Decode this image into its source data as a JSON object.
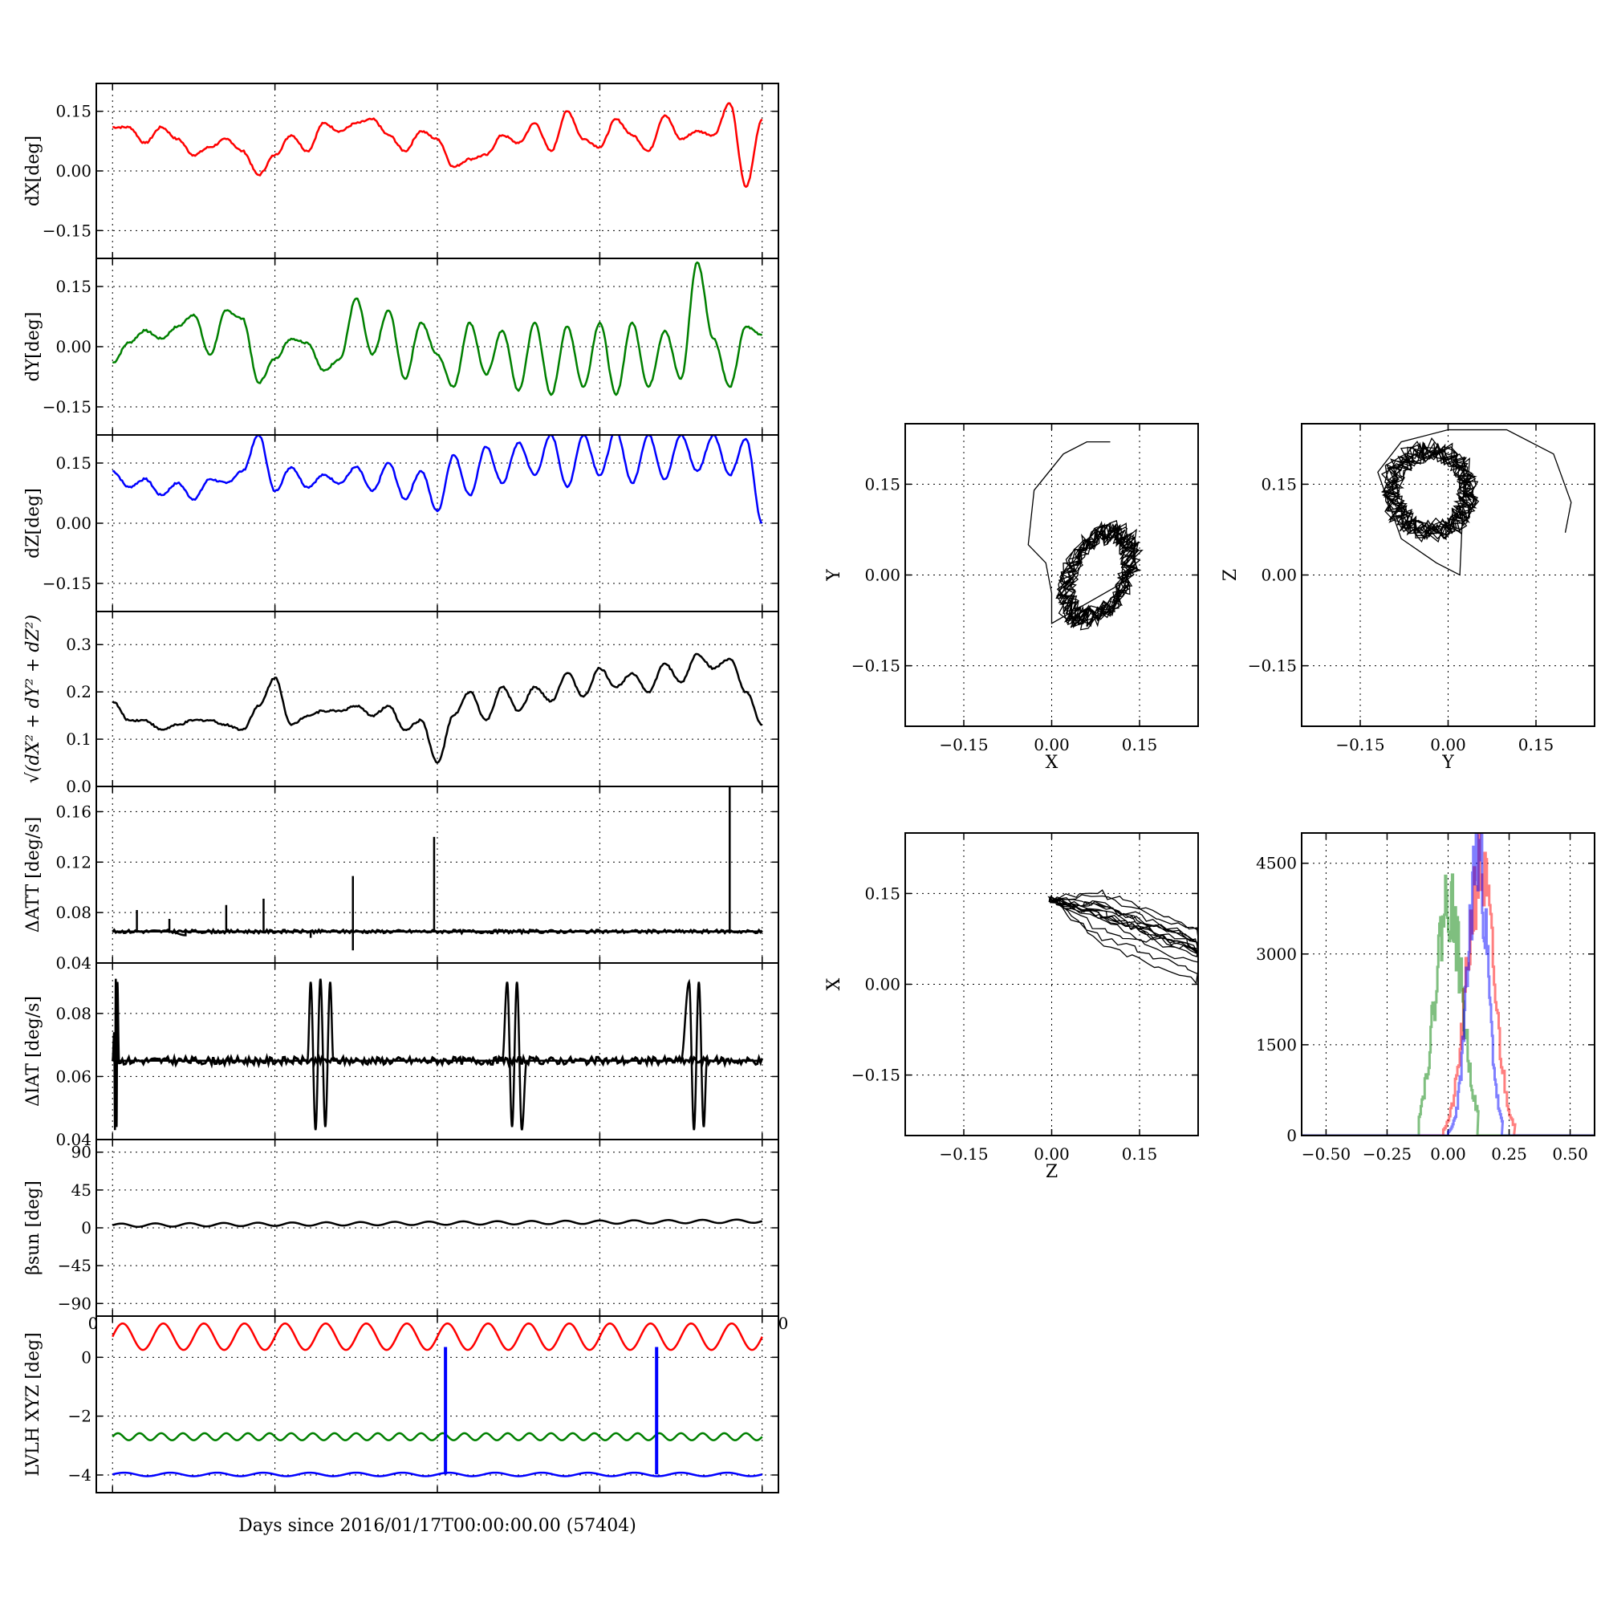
{
  "chart_data": [
    {
      "id": "dx",
      "type": "line",
      "ylabel": "dX[deg]",
      "yticks": [
        0.15,
        0.0,
        -0.15
      ],
      "ytick_labels": [
        "0.15",
        "0.00",
        "−0.15"
      ],
      "ylim": [
        -0.22,
        0.22
      ],
      "xlim": [
        -0.1,
        4.1
      ],
      "grid": true,
      "series": [
        {
          "color": "#ff0000",
          "width": 2.5,
          "x": [
            0.0,
            0.1,
            0.2,
            0.3,
            0.4,
            0.5,
            0.6,
            0.7,
            0.8,
            0.9,
            1.0,
            1.1,
            1.2,
            1.3,
            1.4,
            1.5,
            1.6,
            1.7,
            1.8,
            1.9,
            2.0,
            2.1,
            2.2,
            2.3,
            2.4,
            2.5,
            2.6,
            2.7,
            2.8,
            2.9,
            3.0,
            3.1,
            3.2,
            3.3,
            3.4,
            3.5,
            3.6,
            3.7,
            3.8,
            3.9,
            4.0
          ],
          "y": [
            0.11,
            0.11,
            0.07,
            0.11,
            0.08,
            0.04,
            0.06,
            0.08,
            0.05,
            -0.01,
            0.04,
            0.09,
            0.05,
            0.12,
            0.1,
            0.12,
            0.13,
            0.09,
            0.05,
            0.1,
            0.08,
            0.01,
            0.03,
            0.04,
            0.09,
            0.07,
            0.12,
            0.05,
            0.15,
            0.08,
            0.06,
            0.13,
            0.09,
            0.05,
            0.14,
            0.08,
            0.1,
            0.09,
            0.17,
            -0.04,
            0.13
          ]
        }
      ]
    },
    {
      "id": "dy",
      "type": "line",
      "ylabel": "dY[deg]",
      "yticks": [
        0.15,
        0.0,
        -0.15
      ],
      "ytick_labels": [
        "0.15",
        "0.00",
        "−0.15"
      ],
      "ylim": [
        -0.22,
        0.22
      ],
      "xlim": [
        -0.1,
        4.1
      ],
      "grid": true,
      "series": [
        {
          "color": "#008000",
          "width": 2.5,
          "x": [
            0.0,
            0.1,
            0.2,
            0.3,
            0.4,
            0.5,
            0.6,
            0.7,
            0.8,
            0.9,
            1.0,
            1.1,
            1.2,
            1.3,
            1.4,
            1.5,
            1.6,
            1.7,
            1.8,
            1.9,
            2.0,
            2.1,
            2.2,
            2.3,
            2.4,
            2.5,
            2.6,
            2.7,
            2.8,
            2.9,
            3.0,
            3.1,
            3.2,
            3.3,
            3.4,
            3.5,
            3.6,
            3.7,
            3.8,
            3.9,
            4.0
          ],
          "y": [
            -0.04,
            0.01,
            0.04,
            0.02,
            0.05,
            0.08,
            -0.02,
            0.09,
            0.07,
            -0.09,
            -0.03,
            0.02,
            0.01,
            -0.06,
            -0.03,
            0.12,
            -0.02,
            0.09,
            -0.08,
            0.06,
            -0.02,
            -0.1,
            0.06,
            -0.07,
            0.04,
            -0.11,
            0.06,
            -0.12,
            0.05,
            -0.1,
            0.06,
            -0.12,
            0.06,
            -0.1,
            0.04,
            -0.08,
            0.21,
            0.02,
            -0.1,
            0.05,
            0.03
          ]
        }
      ]
    },
    {
      "id": "dz",
      "type": "line",
      "ylabel": "dZ[deg]",
      "yticks": [
        0.15,
        0.0,
        -0.15
      ],
      "ytick_labels": [
        "0.15",
        "0.00",
        "−0.15"
      ],
      "ylim": [
        -0.22,
        0.22
      ],
      "xlim": [
        -0.1,
        4.1
      ],
      "grid": true,
      "series": [
        {
          "color": "#0000ff",
          "width": 2.5,
          "x": [
            0.0,
            0.1,
            0.2,
            0.3,
            0.4,
            0.5,
            0.6,
            0.7,
            0.8,
            0.9,
            1.0,
            1.1,
            1.2,
            1.3,
            1.4,
            1.5,
            1.6,
            1.7,
            1.8,
            1.9,
            2.0,
            2.1,
            2.2,
            2.3,
            2.4,
            2.5,
            2.6,
            2.7,
            2.8,
            2.9,
            3.0,
            3.1,
            3.2,
            3.3,
            3.4,
            3.5,
            3.6,
            3.7,
            3.8,
            3.9,
            4.0
          ],
          "y": [
            0.13,
            0.09,
            0.11,
            0.07,
            0.1,
            0.06,
            0.11,
            0.1,
            0.13,
            0.22,
            0.08,
            0.14,
            0.09,
            0.12,
            0.1,
            0.14,
            0.08,
            0.15,
            0.06,
            0.13,
            0.03,
            0.17,
            0.07,
            0.19,
            0.1,
            0.2,
            0.12,
            0.22,
            0.09,
            0.22,
            0.12,
            0.23,
            0.1,
            0.22,
            0.11,
            0.22,
            0.13,
            0.22,
            0.12,
            0.21,
            0.0
          ]
        }
      ]
    },
    {
      "id": "total",
      "type": "line",
      "yticks": [
        0.3,
        0.2,
        0.1,
        0.0
      ],
      "ytick_labels": [
        "0.3",
        "0.2",
        "0.1",
        "0.0"
      ],
      "ylim": [
        0.0,
        0.37
      ],
      "xlim": [
        -0.1,
        4.1
      ],
      "grid": true,
      "series": [
        {
          "color": "#000000",
          "width": 2.5,
          "x": [
            0.0,
            0.1,
            0.2,
            0.3,
            0.4,
            0.5,
            0.6,
            0.7,
            0.8,
            0.9,
            1.0,
            1.1,
            1.2,
            1.3,
            1.4,
            1.5,
            1.6,
            1.7,
            1.8,
            1.9,
            2.0,
            2.1,
            2.2,
            2.3,
            2.4,
            2.5,
            2.6,
            2.7,
            2.8,
            2.9,
            3.0,
            3.1,
            3.2,
            3.3,
            3.4,
            3.5,
            3.6,
            3.7,
            3.8,
            3.9,
            4.0
          ],
          "y": [
            0.18,
            0.14,
            0.14,
            0.12,
            0.13,
            0.14,
            0.14,
            0.13,
            0.12,
            0.17,
            0.23,
            0.13,
            0.15,
            0.16,
            0.16,
            0.17,
            0.15,
            0.17,
            0.12,
            0.14,
            0.05,
            0.15,
            0.2,
            0.14,
            0.21,
            0.16,
            0.21,
            0.18,
            0.24,
            0.19,
            0.25,
            0.21,
            0.24,
            0.2,
            0.26,
            0.22,
            0.28,
            0.25,
            0.27,
            0.2,
            0.13
          ]
        }
      ]
    },
    {
      "id": "datt",
      "type": "line",
      "ylabel": "ΔATT [deg/s]",
      "yticks": [
        0.16,
        0.12,
        0.08
      ],
      "ytick_labels": [
        "0.16",
        "0.12",
        "0.08"
      ],
      "extra_tick_label": "0.04",
      "ylim": [
        0.04,
        0.18
      ],
      "xlim": [
        -0.1,
        4.1
      ],
      "grid": true,
      "series": [
        {
          "color": "#000000",
          "width": 2.5,
          "x": [
            0.0,
            0.15,
            0.15,
            0.15,
            0.35,
            0.35,
            0.35,
            0.45,
            0.45,
            0.45,
            0.7,
            0.7,
            0.7,
            0.93,
            0.93,
            0.93,
            1.22,
            1.22,
            1.22,
            1.48,
            1.48,
            1.48,
            1.48,
            1.48,
            1.98,
            1.98,
            1.98,
            3.8,
            3.8,
            3.8,
            4.0
          ],
          "y": [
            0.065,
            0.065,
            0.082,
            0.065,
            0.065,
            0.075,
            0.065,
            0.062,
            0.065,
            0.065,
            0.065,
            0.086,
            0.065,
            0.065,
            0.091,
            0.065,
            0.065,
            0.06,
            0.065,
            0.065,
            0.109,
            0.05,
            0.065,
            0.065,
            0.065,
            0.14,
            0.065,
            0.065,
            0.18,
            0.065,
            0.065
          ]
        }
      ]
    },
    {
      "id": "diat",
      "type": "line",
      "ylabel": "ΔIAT [deg/s]",
      "yticks": [
        0.08,
        0.06,
        0.04
      ],
      "ytick_labels": [
        "0.08",
        "0.06",
        "0.04"
      ],
      "ylim": [
        0.04,
        0.096
      ],
      "xlim": [
        -0.1,
        4.1
      ],
      "grid": true,
      "series": [
        {
          "color": "#000000",
          "width": 2.5,
          "x": [
            0.0,
            0.01,
            0.015,
            0.02,
            0.025,
            0.03,
            0.04,
            0.3,
            0.6,
            0.9,
            1.2,
            1.22,
            1.25,
            1.28,
            1.31,
            1.34,
            1.36,
            1.6,
            1.9,
            2.2,
            2.3,
            2.4,
            2.43,
            2.46,
            2.49,
            2.52,
            2.55,
            2.7,
            3.0,
            3.3,
            3.5,
            3.55,
            3.58,
            3.61,
            3.64,
            3.66,
            3.8,
            4.0
          ],
          "y": [
            0.065,
            0.074,
            0.043,
            0.091,
            0.044,
            0.09,
            0.065,
            0.065,
            0.065,
            0.065,
            0.065,
            0.09,
            0.043,
            0.091,
            0.044,
            0.09,
            0.065,
            0.065,
            0.065,
            0.065,
            0.065,
            0.065,
            0.09,
            0.044,
            0.09,
            0.043,
            0.065,
            0.065,
            0.065,
            0.065,
            0.065,
            0.09,
            0.043,
            0.09,
            0.044,
            0.065,
            0.065,
            0.065
          ]
        }
      ]
    },
    {
      "id": "beta",
      "type": "line",
      "ylabel": "βsun [deg]",
      "yticks": [
        90,
        45,
        0,
        -45,
        -90
      ],
      "ytick_labels": [
        "90",
        "45",
        "0",
        "−45",
        "−90"
      ],
      "ylim": [
        -105,
        105
      ],
      "xlim": [
        -0.1,
        4.1
      ],
      "grid": true,
      "xtick_edge_labels": [
        "0",
        "0"
      ],
      "series": [
        {
          "color": "#000000",
          "width": 2.5,
          "kind": "sine",
          "x0": 0.0,
          "x1": 4.0,
          "base_start": 3,
          "base_end": 8,
          "amp": 2,
          "periods": 19
        }
      ]
    },
    {
      "id": "lvlh",
      "type": "line",
      "ylabel": "LVLH XYZ [deg]",
      "yticks": [
        0,
        -2,
        -4
      ],
      "ytick_labels": [
        "0",
        "−2",
        "−4"
      ],
      "ylim": [
        -4.6,
        1.4
      ],
      "xlim": [
        -0.1,
        4.1
      ],
      "grid": true,
      "xlabel": "Days since 2016/01/17T00:00:00.00 (57404)",
      "series": [
        {
          "color": "#ff0000",
          "width": 2.5,
          "kind": "sine",
          "x0": 0.0,
          "x1": 4.0,
          "base_start": 0.7,
          "base_end": 0.7,
          "amp": 0.45,
          "periods": 16
        },
        {
          "color": "#008000",
          "width": 2.5,
          "kind": "sine",
          "x0": 0.0,
          "x1": 4.0,
          "base_start": -2.7,
          "base_end": -2.7,
          "amp": 0.12,
          "periods": 30
        },
        {
          "color": "#0000ff",
          "width": 2.5,
          "kind": "sine",
          "x0": 0.0,
          "x1": 4.0,
          "base_start": -3.98,
          "base_end": -3.98,
          "amp": 0.06,
          "periods": 14,
          "spikes": [
            {
              "x": 2.05,
              "y": 0.35
            },
            {
              "x": 3.35,
              "y": 0.35
            }
          ]
        }
      ]
    },
    {
      "id": "xy",
      "type": "scatter",
      "xlabel": "X",
      "ylabel": "Y",
      "xticks": [
        -0.15,
        0.0,
        0.15
      ],
      "xtick_labels": [
        "−0.15",
        "0.00",
        "0.15"
      ],
      "yticks": [
        0.15,
        0.0,
        -0.15
      ],
      "ytick_labels": [
        "0.15",
        "0.00",
        "−0.15"
      ],
      "xlim": [
        -0.25,
        0.25
      ],
      "ylim": [
        -0.25,
        0.25
      ],
      "grid": true,
      "series": [
        {
          "color": "#000000",
          "width": 1.3,
          "kind": "orbit",
          "outer": [
            [
              0.1,
              0.22
            ],
            [
              0.06,
              0.22
            ],
            [
              0.02,
              0.2
            ],
            [
              -0.03,
              0.14
            ],
            [
              -0.04,
              0.05
            ],
            [
              -0.01,
              0.02
            ],
            [
              0.0,
              -0.03
            ],
            [
              0.0,
              -0.08
            ]
          ],
          "cx": 0.08,
          "cy": 0.0,
          "rx": 0.05,
          "ry": 0.08,
          "tilt": -0.5,
          "loops": 14,
          "seed": 3
        }
      ]
    },
    {
      "id": "yz",
      "type": "scatter",
      "xlabel": "Y",
      "ylabel": "Z",
      "xticks": [
        -0.15,
        0.0,
        0.15
      ],
      "xtick_labels": [
        "−0.15",
        "0.00",
        "0.15"
      ],
      "yticks": [
        0.15,
        0.0,
        -0.15
      ],
      "ytick_labels": [
        "0.15",
        "0.00",
        "−0.15"
      ],
      "xlim": [
        -0.25,
        0.25
      ],
      "ylim": [
        -0.25,
        0.25
      ],
      "grid": true,
      "series": [
        {
          "color": "#000000",
          "width": 1.3,
          "kind": "orbit",
          "outer": [
            [
              0.2,
              0.07
            ],
            [
              0.21,
              0.12
            ],
            [
              0.18,
              0.2
            ],
            [
              0.1,
              0.24
            ],
            [
              0.0,
              0.24
            ],
            [
              -0.08,
              0.22
            ],
            [
              -0.12,
              0.17
            ],
            [
              -0.08,
              0.06
            ],
            [
              -0.02,
              0.02
            ],
            [
              0.02,
              0.0
            ]
          ],
          "cx": -0.03,
          "cy": 0.14,
          "rx": 0.07,
          "ry": 0.07,
          "tilt": 0.3,
          "loops": 14,
          "seed": 7
        }
      ]
    },
    {
      "id": "zx",
      "type": "scatter",
      "xlabel": "Z",
      "ylabel": "X",
      "xticks": [
        -0.15,
        0.0,
        0.15
      ],
      "xtick_labels": [
        "−0.15",
        "0.00",
        "0.15"
      ],
      "yticks": [
        0.15,
        0.0,
        -0.15
      ],
      "ytick_labels": [
        "0.15",
        "0.00",
        "−0.15"
      ],
      "xlim": [
        -0.25,
        0.25
      ],
      "ylim": [
        -0.25,
        0.25
      ],
      "grid": true,
      "series": [
        {
          "color": "#000000",
          "width": 1.3,
          "kind": "band",
          "start": [
            0.0,
            0.14
          ],
          "end": [
            0.25,
            0.05
          ],
          "spread": 0.045,
          "lines": 16,
          "seed": 11
        }
      ]
    },
    {
      "id": "hist",
      "type": "histogram",
      "xticks": [
        -0.5,
        -0.25,
        0.0,
        0.25,
        0.5
      ],
      "xtick_labels": [
        "−0.50",
        "−0.25",
        "0.00",
        "0.25",
        "0.50"
      ],
      "yticks": [
        4500,
        3000,
        1500,
        0
      ],
      "ytick_labels": [
        "4500",
        "3000",
        "1500",
        "0"
      ],
      "xlim": [
        -0.6,
        0.6
      ],
      "ylim": [
        0,
        5000
      ],
      "grid": true,
      "series": [
        {
          "color": "#ff0000",
          "opacity": 0.5,
          "center": 0.13,
          "sigma": 0.055,
          "peak": 4500,
          "range": [
            -0.02,
            0.27
          ],
          "seed": 21
        },
        {
          "color": "#008000",
          "opacity": 0.5,
          "center": 0.0,
          "sigma": 0.055,
          "peak": 4000,
          "range": [
            -0.12,
            0.12
          ],
          "seed": 22
        },
        {
          "color": "#0000ff",
          "opacity": 0.5,
          "center": 0.12,
          "sigma": 0.04,
          "peak": 4800,
          "range": [
            0.0,
            0.22
          ],
          "seed": 23
        }
      ]
    }
  ]
}
